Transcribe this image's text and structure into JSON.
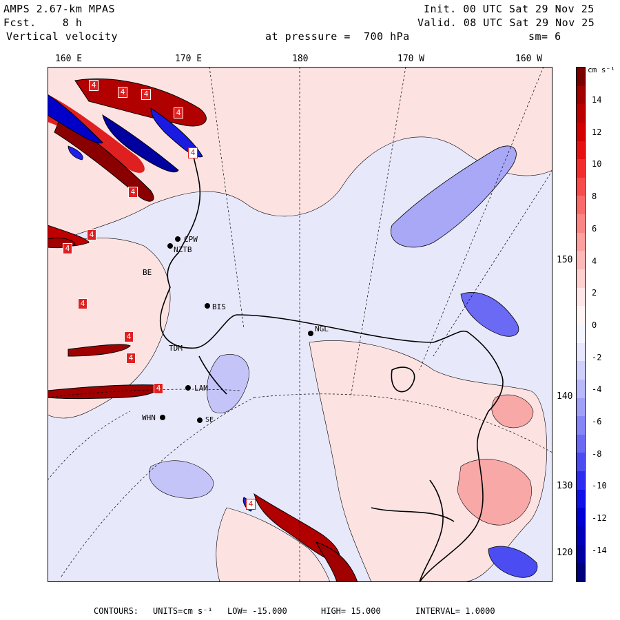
{
  "header": {
    "model": "AMPS 2.67-km MPAS",
    "fcst_label": "Fcst.",
    "fcst_value": "8 h",
    "field": "Vertical velocity",
    "init_label": "Init.",
    "init_value": "00 UTC Sat 29 Nov 25",
    "valid_label": "Valid.",
    "valid_value": "08 UTC Sat 29 Nov 25",
    "level_label": "at pressure =",
    "level_value": "700 hPa",
    "smoothing": "sm= 6"
  },
  "longitude_labels": [
    "160 E",
    "170 E",
    "180",
    "170 W",
    "160 W"
  ],
  "latitude_labels": [
    "150 W",
    "140 W",
    "130 W",
    "120 W"
  ],
  "stations": [
    {
      "id": "CPW"
    },
    {
      "id": "NZTB"
    },
    {
      "id": "BIS"
    },
    {
      "id": "NGL"
    },
    {
      "id": "TDM"
    },
    {
      "id": "LAM"
    },
    {
      "id": "WHN"
    },
    {
      "id": "SE"
    },
    {
      "id": "BE"
    }
  ],
  "contour_marker": "4",
  "colorbar": {
    "units": "cm s⁻¹",
    "ticks": [
      "14",
      "12",
      "10",
      "8",
      "6",
      "4",
      "2",
      "0",
      "-2",
      "-4",
      "-6",
      "-8",
      "-10",
      "-12",
      "-14"
    ],
    "colors": [
      "#7a0000",
      "#a00000",
      "#bb0000",
      "#d40000",
      "#e81010",
      "#f52c2c",
      "#f84c4c",
      "#f96a6a",
      "#fb8686",
      "#fca0a0",
      "#fdb8b8",
      "#fed0d0",
      "#ffe6e6",
      "#fff4f4",
      "#f4f4ff",
      "#e6e6ff",
      "#d0d0fc",
      "#b8b8fb",
      "#a0a0f9",
      "#8686f7",
      "#6a6af5",
      "#4c4cf3",
      "#2c2cf0",
      "#1010e8",
      "#0000d4",
      "#0000bb",
      "#0000a0",
      "#00007a"
    ]
  },
  "footer": {
    "contours_label": "CONTOURS:",
    "units": "UNITS=cm s⁻¹",
    "low": "LOW= -15.000",
    "high": "HIGH= 15.000",
    "interval": "INTERVAL= 1.0000"
  }
}
